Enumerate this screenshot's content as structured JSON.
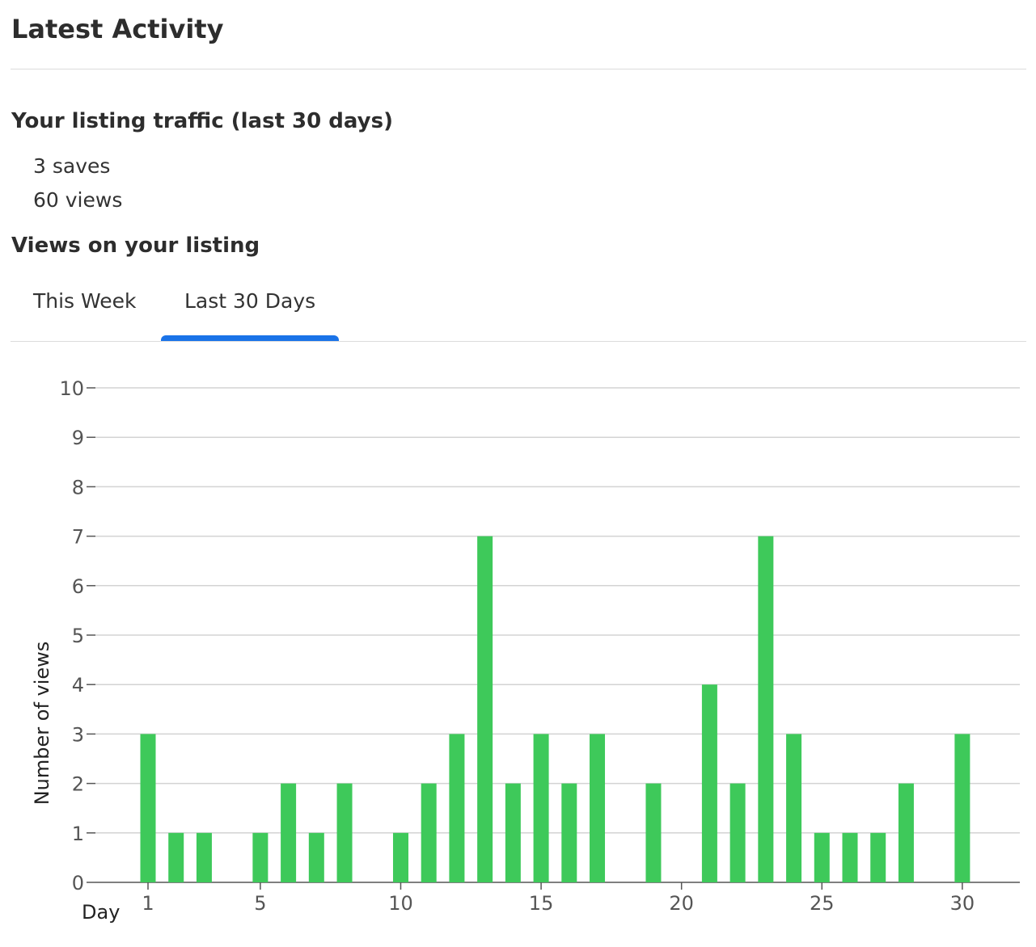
{
  "header": {
    "title": "Latest Activity"
  },
  "traffic": {
    "heading": "Your listing traffic (last 30 days)",
    "saves": "3 saves",
    "views": "60 views"
  },
  "views_section": {
    "heading": "Views on your listing",
    "tabs": [
      {
        "label": "This Week",
        "active": false
      },
      {
        "label": "Last 30 Days",
        "active": true
      }
    ],
    "accent_color": "#1a73e8"
  },
  "chart_data": {
    "type": "bar",
    "xlabel": "Day",
    "ylabel": "Number of views",
    "x": [
      1,
      2,
      3,
      4,
      5,
      6,
      7,
      8,
      9,
      10,
      11,
      12,
      13,
      14,
      15,
      16,
      17,
      18,
      19,
      20,
      21,
      22,
      23,
      24,
      25,
      26,
      27,
      28,
      29,
      30
    ],
    "values": [
      3,
      1,
      1,
      0,
      1,
      2,
      1,
      2,
      0,
      1,
      2,
      3,
      7,
      2,
      3,
      2,
      3,
      0,
      2,
      0,
      4,
      2,
      7,
      3,
      1,
      1,
      1,
      2,
      0,
      3
    ],
    "x_ticks": [
      1,
      5,
      10,
      15,
      20,
      25,
      30
    ],
    "y_ticks": [
      0,
      1,
      2,
      3,
      4,
      5,
      6,
      7,
      8,
      9,
      10
    ],
    "ylim": [
      0,
      10
    ],
    "grid": true,
    "bar_color": "#3ec95a"
  }
}
